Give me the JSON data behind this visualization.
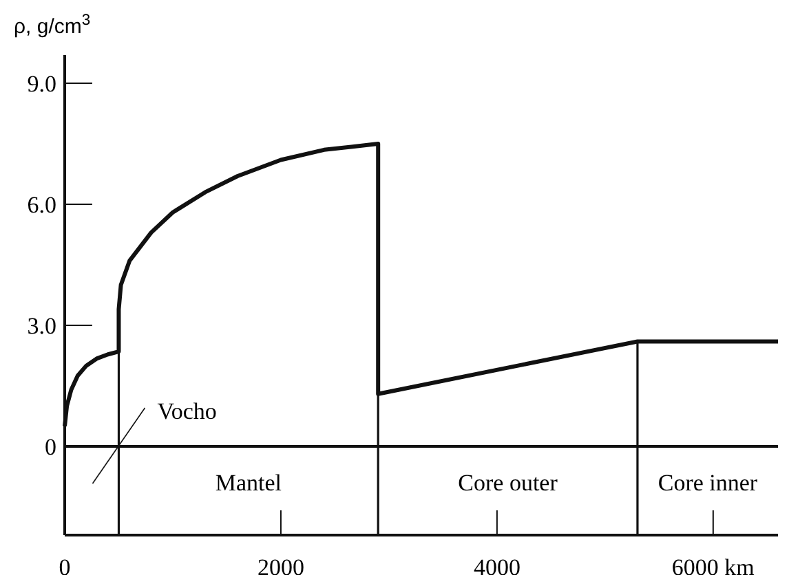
{
  "chart_data": {
    "type": "line",
    "ylabel": "ρ, g/cm$^{3}$",
    "x": [
      0,
      20,
      60,
      120,
      200,
      300,
      400,
      500,
      500,
      520,
      600,
      800,
      1000,
      1300,
      1600,
      2000,
      2400,
      2900,
      2900,
      5300,
      6600
    ],
    "series": [
      {
        "color": "#111111",
        "values": [
          0.5,
          1.0,
          1.4,
          1.75,
          2.0,
          2.18,
          2.28,
          2.35,
          3.4,
          4.0,
          4.6,
          5.3,
          5.8,
          6.3,
          6.7,
          7.1,
          7.35,
          7.5,
          1.3,
          2.6,
          2.6
        ]
      }
    ],
    "xlim": [
      0,
      6600
    ],
    "xticks": [
      0,
      2000,
      4000,
      {
        "value": 6000,
        "label": "6000 km"
      }
    ],
    "ylim": [
      -2.2,
      9.7
    ],
    "yticks": [
      0,
      {
        "value": 3,
        "label": "3.0"
      },
      {
        "value": 6,
        "label": "6.0"
      },
      {
        "value": 9,
        "label": "9.0"
      }
    ],
    "ref_lines": [
      {
        "axis": "y",
        "value": 0,
        "label": null
      },
      {
        "axis": "x",
        "value": 500,
        "label": null
      },
      {
        "axis": "x",
        "value": 2900,
        "label": null
      },
      {
        "axis": "x",
        "value": 5300,
        "label": null
      }
    ],
    "annotations": [
      {
        "text": "Vocho",
        "x": 500,
        "y": 0
      },
      "Mantel",
      "Core outer",
      "Core inner"
    ],
    "marker": "none",
    "line_style": "solid"
  }
}
